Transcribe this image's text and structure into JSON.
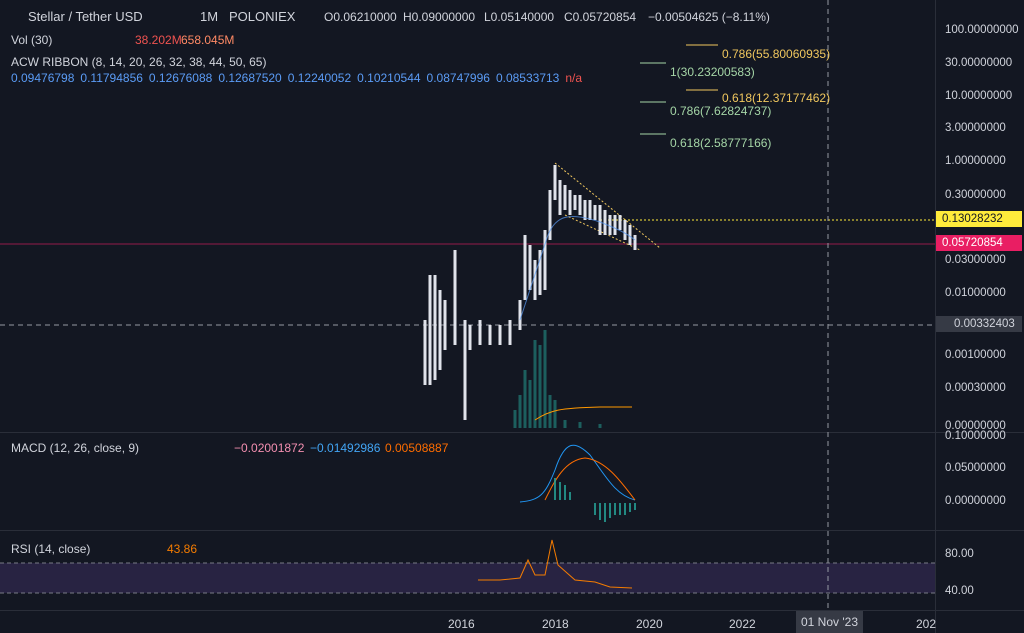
{
  "header": {
    "symbol": "Stellar / Tether USD",
    "interval": "1M",
    "exchange": "POLONIEX",
    "open": "O0.06210000",
    "high": "H0.09000000",
    "low": "L0.05140000",
    "close": "C0.05720854",
    "change": "−0.00504625 (−8.11%)"
  },
  "volume": {
    "label": "Vol (30)",
    "values": [
      "38.202M",
      "658.045M"
    ]
  },
  "ribbon": {
    "label": "ACW RIBBON (8, 14, 20, 26, 32, 38, 44, 50, 65)",
    "values": [
      "0.09476798",
      "0.11794856",
      "0.12676088",
      "0.12687520",
      "0.12240052",
      "0.10210544",
      "0.08747996",
      "0.08533713"
    ],
    "missing": "n/a"
  },
  "price_axis": [
    "100.00000000",
    "30.00000000",
    "10.00000000",
    "3.00000000",
    "1.00000000",
    "0.30000000",
    "0.03000000",
    "0.01000000",
    "0.00100000",
    "0.00030000",
    "0.00000000"
  ],
  "price_tags": {
    "level": "0.13028232",
    "last": "0.05720854",
    "crosshair": "0.00332403"
  },
  "fib_labels": [
    "0.786(55.80060935)",
    "1(30.23200583)",
    "0.618(12.37177462)",
    "0.786(7.62824737)",
    "0.618(2.58777166)"
  ],
  "macd": {
    "label": "MACD (12, 26, close, 9)",
    "values": [
      "−0.02001872",
      "−0.01492986",
      "0.00508887"
    ],
    "axis": [
      "0.10000000",
      "0.05000000",
      "0.00000000"
    ]
  },
  "rsi": {
    "label": "RSI (14, close)",
    "value": "43.86",
    "axis": [
      "80.00",
      "40.00"
    ]
  },
  "time_axis": {
    "labels": [
      "2016",
      "2018",
      "2020",
      "2022",
      "202"
    ],
    "crosshair": "01 Nov '23"
  }
}
